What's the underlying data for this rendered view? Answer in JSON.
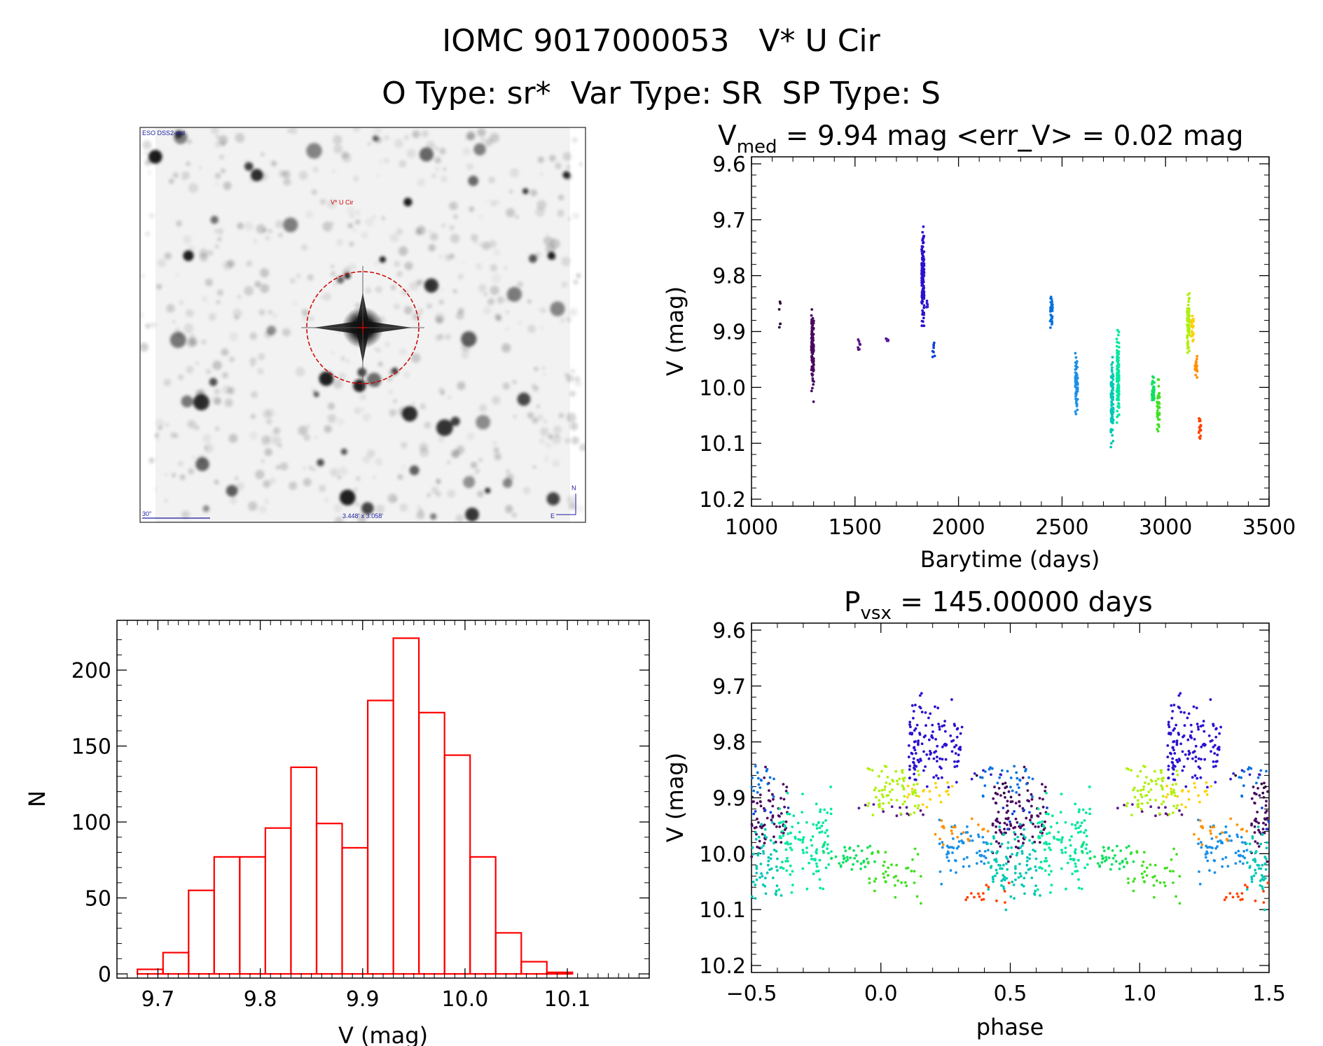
{
  "header": {
    "title": "IOMC 9017000053   V* U Cir",
    "subtitle": "O Type: sr*  Var Type: SR  SP Type: S"
  },
  "finder_image": {
    "survey_label": "ESO DSS2-red",
    "target_label": "V* U Cir",
    "scale_label": "30\"",
    "fov_label": "3.448' x 3.058'",
    "north_label": "N",
    "east_label": "E"
  },
  "colors": {
    "histogram": "#ff0000",
    "finder_circle": "#cc0000",
    "finder_text": "#1a1aa0"
  },
  "chart_data": [
    {
      "type": "scatter",
      "panel": "light-curve",
      "title_main": "V",
      "title_sub": "med",
      "title_rest": " = 9.94 mag <err_V> = 0.02 mag",
      "xlabel": "Barytime (days)",
      "ylabel": "V (mag)",
      "xlim": [
        1000,
        3500
      ],
      "ylim": [
        10.2,
        9.6
      ],
      "y_inverted": true,
      "xticks": [
        1000,
        1500,
        2000,
        2500,
        3000,
        3500
      ],
      "yticks": [
        "9.6",
        "9.7",
        "9.8",
        "9.9",
        "10.0",
        "10.1",
        "10.2"
      ],
      "segments": [
        {
          "x": 1135,
          "y1": 9.83,
          "y2": 9.92,
          "n": 6,
          "color": "#2a0a3a"
        },
        {
          "x": 1295,
          "y1": 9.84,
          "y2": 10.03,
          "n": 110,
          "color": "#4a0a60"
        },
        {
          "x": 1520,
          "y1": 9.91,
          "y2": 9.94,
          "n": 8,
          "color": "#5a1080"
        },
        {
          "x": 1655,
          "y1": 9.91,
          "y2": 9.92,
          "n": 5,
          "color": "#5a18a0"
        },
        {
          "x": 1828,
          "y1": 9.68,
          "y2": 9.92,
          "n": 130,
          "color": "#2a10d0"
        },
        {
          "x": 1850,
          "y1": 9.84,
          "y2": 9.87,
          "n": 6,
          "color": "#3020d0"
        },
        {
          "x": 1880,
          "y1": 9.9,
          "y2": 9.96,
          "n": 8,
          "color": "#1040e0"
        },
        {
          "x": 2448,
          "y1": 9.82,
          "y2": 9.91,
          "n": 30,
          "color": "#0870e0"
        },
        {
          "x": 2570,
          "y1": 9.92,
          "y2": 10.07,
          "n": 60,
          "color": "#1a90e8"
        },
        {
          "x": 2742,
          "y1": 9.92,
          "y2": 10.13,
          "n": 100,
          "color": "#00c8b4"
        },
        {
          "x": 2770,
          "y1": 9.86,
          "y2": 10.1,
          "n": 110,
          "color": "#00e8a0"
        },
        {
          "x": 2940,
          "y1": 9.97,
          "y2": 10.04,
          "n": 40,
          "color": "#10e060"
        },
        {
          "x": 2965,
          "y1": 9.97,
          "y2": 10.1,
          "n": 40,
          "color": "#40e020"
        },
        {
          "x": 3110,
          "y1": 9.82,
          "y2": 9.95,
          "n": 70,
          "color": "#b0f010"
        },
        {
          "x": 3130,
          "y1": 9.86,
          "y2": 9.93,
          "n": 20,
          "color": "#ffd000"
        },
        {
          "x": 3148,
          "y1": 9.93,
          "y2": 9.99,
          "n": 20,
          "color": "#ff9000"
        },
        {
          "x": 3165,
          "y1": 10.04,
          "y2": 10.11,
          "n": 15,
          "color": "#ff4000"
        }
      ]
    },
    {
      "type": "bar",
      "panel": "histogram",
      "xlabel": "V (mag)",
      "ylabel": "N",
      "xlim": [
        9.66,
        10.18
      ],
      "ylim": [
        0,
        230
      ],
      "bin_width": 0.025,
      "bin_starts": [
        9.68,
        9.705,
        9.73,
        9.755,
        9.78,
        9.805,
        9.83,
        9.855,
        9.88,
        9.905,
        9.93,
        9.955,
        9.98,
        10.005,
        10.03,
        10.055,
        10.08,
        10.105
      ],
      "values": [
        3,
        14,
        55,
        77,
        77,
        96,
        136,
        99,
        83,
        180,
        221,
        172,
        144,
        77,
        27,
        8,
        1,
        0
      ],
      "xticks": [
        "9.7",
        "9.8",
        "9.9",
        "10.0",
        "10.1"
      ],
      "yticks": [
        "0",
        "50",
        "100",
        "150",
        "200"
      ]
    },
    {
      "type": "scatter",
      "panel": "phase-curve",
      "title_main": "P",
      "title_sub": "vsx",
      "title_rest": " = 145.00000 days",
      "xlabel": "phase",
      "ylabel": "V (mag)",
      "xlim": [
        -0.5,
        1.5
      ],
      "ylim": [
        10.2,
        9.6
      ],
      "y_inverted": true,
      "xticks": [
        "−0.5",
        "0.0",
        "0.5",
        "1.0",
        "1.5"
      ],
      "yticks": [
        "9.6",
        "9.7",
        "9.8",
        "9.9",
        "10.0",
        "10.1",
        "10.2"
      ],
      "period": 145.0
    }
  ]
}
